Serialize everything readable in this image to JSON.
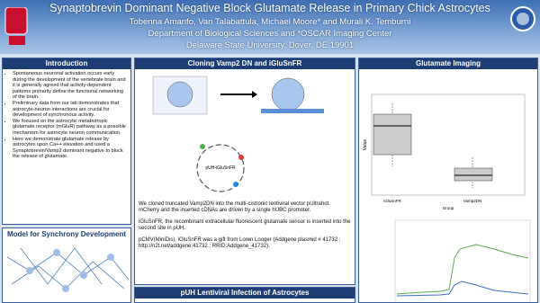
{
  "header": {
    "title": "Synaptobrevin Dominant Negative Block Glutamate Release in Primary Chick Astrocytes",
    "authors": "Tobenna Amanfo, Van Talabattula, Michael Moore* and Murali K. Temburni",
    "department": "Department of Biological Sciences and *OSCAR Imaging Center",
    "university": "Delaware State University, Dover, DE 19901"
  },
  "introduction": {
    "heading": "Introduction",
    "bullets": [
      "Spontaneous neuronal activation occurs early during the development of the vertebrate brain and it is generally agreed that activity-dependent patterns primarily define the functional networking of the brain.",
      "Preliminary data from our lab demonstrates that astrocyte-neuron interactions are crucial for development of synchronous activity.",
      "We focused on the astrocytic metabotropic glutamate receptor (mGluR) pathway as a possible mechanism for astrocyte neuron communication.",
      "Here we demonstrate glutamate release by astrocytes upon Ca++ elevation and used a Synaptobrevin/Vamp2 dominant negative to block the release of glutamate."
    ]
  },
  "model": {
    "heading": "Model for Synchrony Development"
  },
  "cloning": {
    "heading": "Cloning Vamp2 DN and iGluSnFR",
    "plasmid": "pUH-iGluSnFR",
    "paragraphs": [
      "We cloned truncated Vamp2DN into the multi-cistronic lentiviral vector pUltrahot. mCherry and the inserted cDNAs are driven by a single hUBC promoter.",
      "iGluSnFR, the recombinant extracellular fluorescent glutamate sensor is inserted into the second site in pUH.",
      "pCMV(MiniDis). iGluSnFR was a gift from Loren Looger (Addgene plasmid # 41732 ; http://n2t.net/addgene:41732 ; RRID:Addgene_41732)."
    ]
  },
  "imaging": {
    "heading": "Glutamate Imaging",
    "groups": [
      "iGluSnFR",
      "Vamp2DN"
    ],
    "x_title": "Group",
    "y_title": "Value"
  },
  "lentiviral": {
    "heading": "pUH Lentiviral Infection of Astrocytes"
  }
}
